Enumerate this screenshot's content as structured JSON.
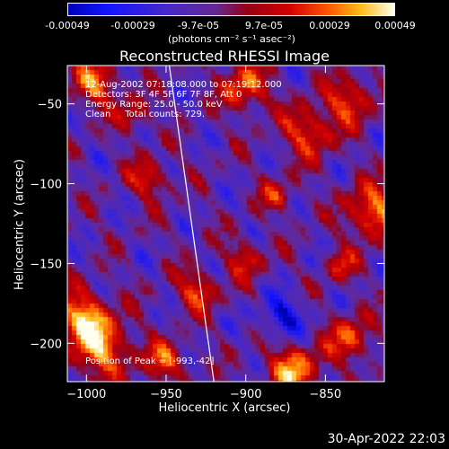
{
  "colorbar": {
    "ticks": [
      "-0.00049",
      "-0.00029",
      "-9.7e-05",
      "9.7e-05",
      "0.00029",
      "0.00049"
    ],
    "units": "(photons cm⁻² s⁻¹ asec⁻²)"
  },
  "chart_data": {
    "type": "heatmap",
    "title": "Reconstructed RHESSI Image",
    "xlabel": "Heliocentric X (arcsec)",
    "ylabel": "Heliocentric Y (arcsec)",
    "xlim": [
      -1012,
      -813
    ],
    "ylim": [
      -224,
      -26
    ],
    "x_ticks": [
      -1000,
      -950,
      -900,
      -850
    ],
    "y_ticks": [
      -50,
      -100,
      -150,
      -200
    ],
    "value_range": [
      -0.00049,
      0.00049
    ],
    "colormap": "rhessi-blue-purple-red-yellow",
    "limb_line": {
      "x": [
        -948,
        -920
      ],
      "y": [
        -26,
        -224
      ]
    },
    "peak": [
      -993,
      -42
    ],
    "grid": false
  },
  "info": {
    "line1": "12-Aug-2002 07:18:08.000 to 07:19:12.000",
    "line2": "Detectors: 3F 4F 5F 6F 7F 8F, Att 0",
    "line3": "Energy Range: 25.0 - 50.0 keV",
    "line4": "Clean     Total counts: 729."
  },
  "peak_label": "Position of Peak = [-993,-42]",
  "timestamp": "30-Apr-2022 22:03"
}
